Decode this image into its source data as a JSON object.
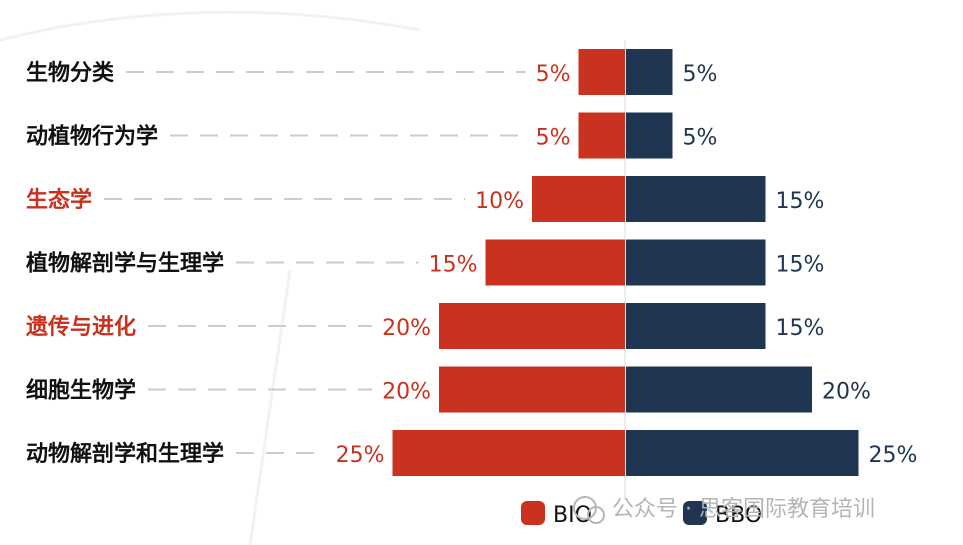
{
  "chart_data": {
    "type": "bar",
    "orientation": "horizontal-diverging",
    "categories": [
      "生物分类",
      "动植物行为学",
      "生态学",
      "植物解剖学与生理学",
      "遗传与进化",
      "细胞生物学",
      "动物解剖学和生理学"
    ],
    "highlighted_categories": [
      "生态学",
      "遗传与进化"
    ],
    "series": [
      {
        "name": "BIO",
        "values": [
          5,
          5,
          10,
          15,
          20,
          20,
          25
        ],
        "value_labels": [
          "5%",
          "5%",
          "10%",
          "15%",
          "20%",
          "20%",
          "25%"
        ],
        "color": "#c8321e",
        "side": "left"
      },
      {
        "name": "BBO",
        "values": [
          5,
          5,
          15,
          15,
          15,
          20,
          25
        ],
        "value_labels": [
          "5%",
          "5%",
          "15%",
          "15%",
          "15%",
          "20%",
          "25%"
        ],
        "color": "#1f3552",
        "side": "right"
      }
    ],
    "unit": "%",
    "xlim": [
      0,
      25
    ],
    "legend": {
      "placement": "bottom-right",
      "items": [
        "BIO",
        "BBO"
      ]
    },
    "grid": false
  },
  "colors": {
    "bio": "#c8321e",
    "bbo": "#1f3552",
    "highlight_label": "#c8321e",
    "normal_label": "#111111",
    "leader_dash": "#cccccc",
    "center_axis": "#dddddd",
    "watermark": "#b5b5b5"
  },
  "watermark": {
    "icon": "wechat-icon",
    "text": "公众号 · 思客国际教育培训"
  }
}
